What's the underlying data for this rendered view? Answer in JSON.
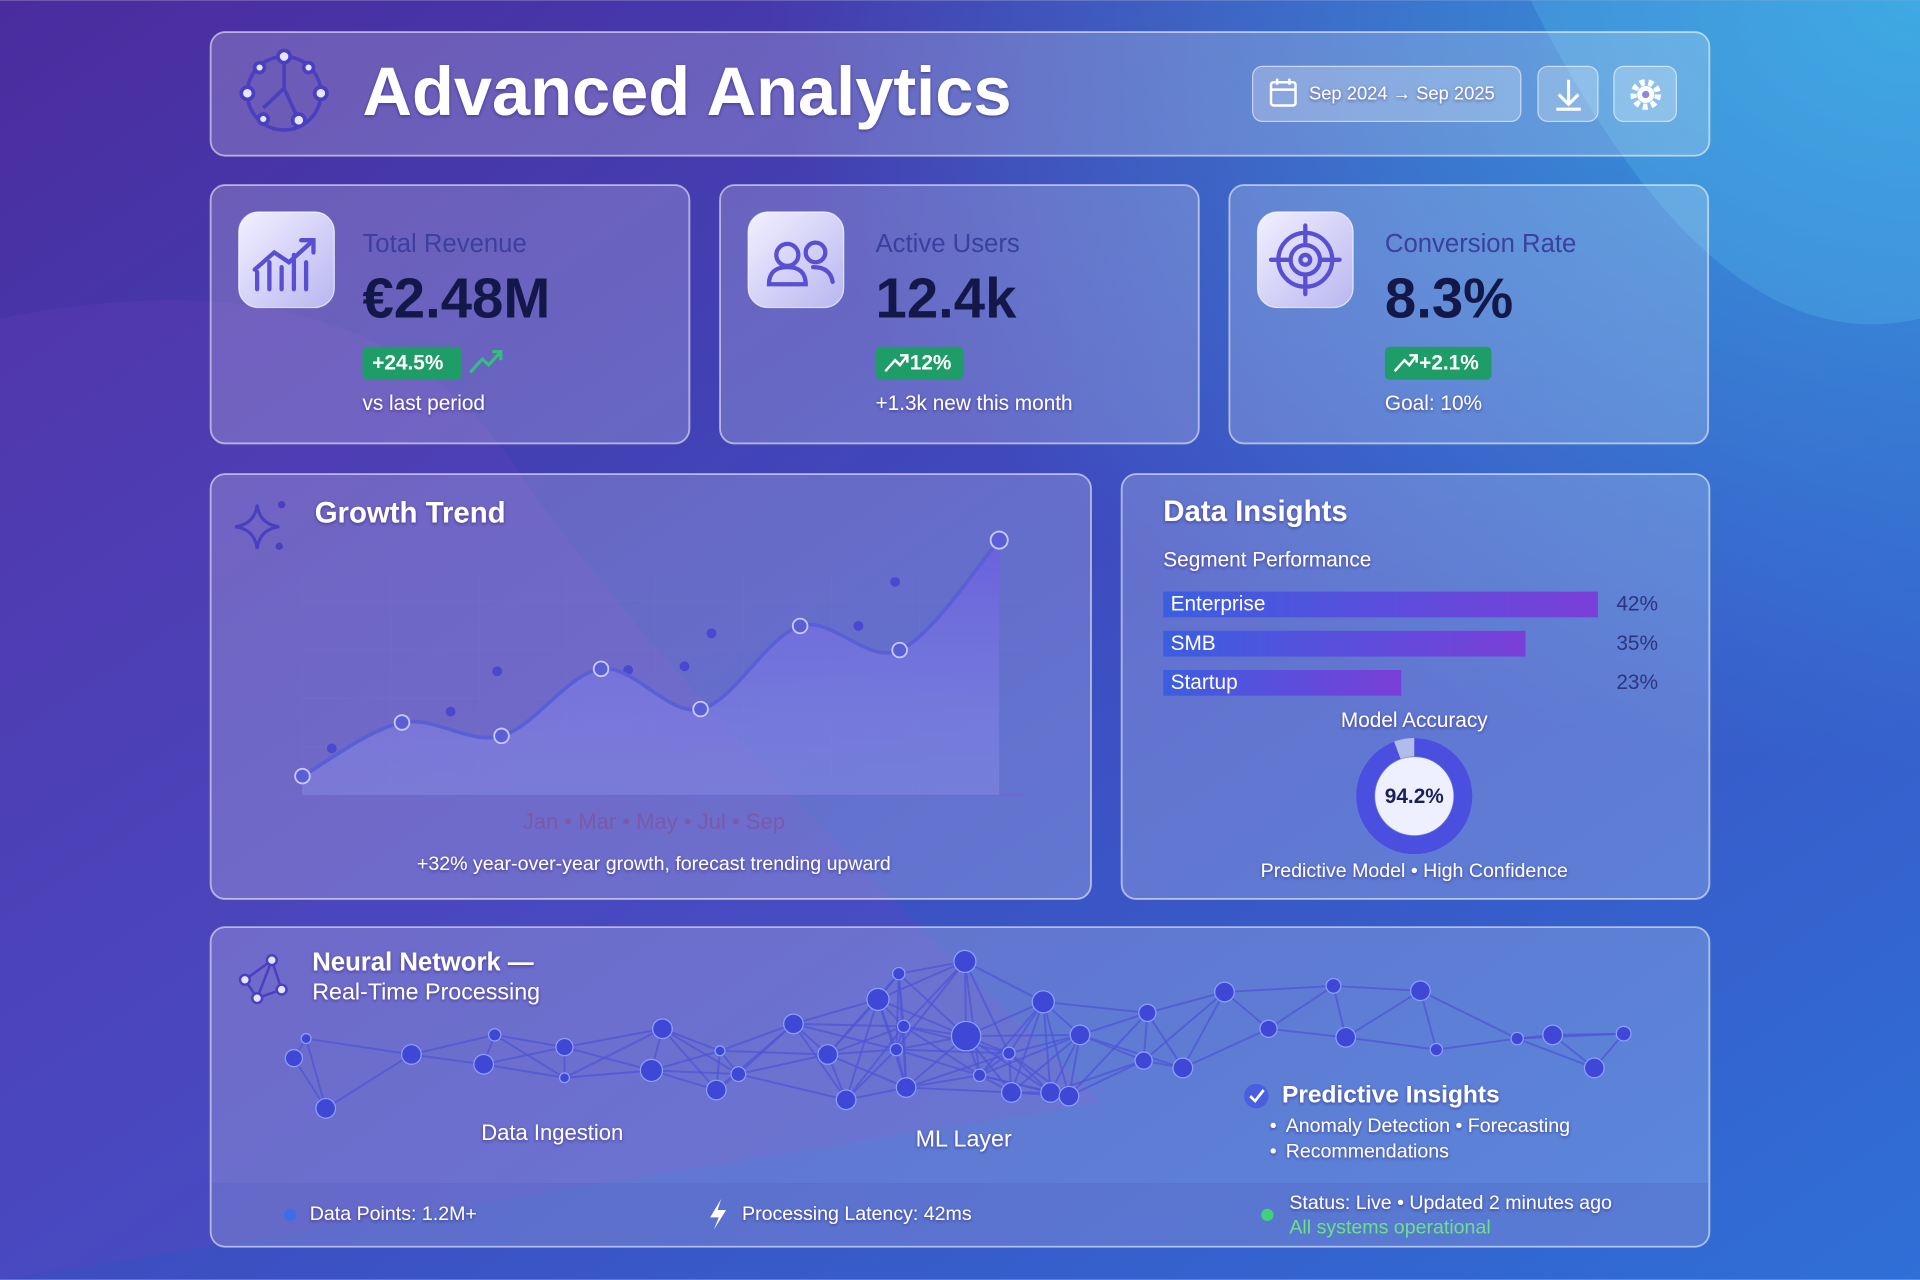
{
  "header": {
    "title": "Advanced Analytics",
    "date_range": "Sep 2024 → Sep 2025"
  },
  "kpis": [
    {
      "label": "Total Revenue",
      "value": "€2.48M",
      "change": "+24.5%",
      "note": "vs last period"
    },
    {
      "label": "Active Users",
      "value": "12.4k",
      "change": "12%",
      "note": "+1.3k new this month"
    },
    {
      "label": "Conversion Rate",
      "value": "8.3%",
      "change": "+2.1%",
      "note": "Goal: 10%"
    }
  ],
  "growth_trend": {
    "type": "area",
    "title": "Growth Trend",
    "x_label": "Jan • Mar • May • Jul • Sep",
    "values": [
      7,
      27,
      22,
      47,
      32,
      63,
      54,
      95
    ],
    "ylim": [
      0,
      100
    ],
    "color": "#5b5fd6",
    "caption": "+32% year-over-year growth, forecast trending upward"
  },
  "insights": {
    "title": "Data Insights",
    "subtitle": "Segment Performance",
    "segments": {
      "type": "bar",
      "categories": [
        "Enterprise",
        "SMB",
        "Startup"
      ],
      "values": [
        42,
        35,
        23
      ],
      "value_labels": [
        "42%",
        "35%",
        "23%"
      ]
    },
    "accuracy": {
      "title": "Model Accuracy",
      "value": 94.2,
      "value_label": "94.2%",
      "caption": "Predictive Model • High Confidence"
    }
  },
  "network": {
    "title": "Neural Network —",
    "subtitle": "Real-Time Processing",
    "stage_labels": [
      "Data Ingestion",
      "ML Layer"
    ],
    "insights_title": "Predictive Insights",
    "insights_items": [
      "Anomaly Detection • Forecasting",
      "Recommendations"
    ]
  },
  "footer": {
    "data_points": "Data Points: 1.2M+",
    "latency": "Processing Latency: 42ms",
    "status": "Status: Live • Updated 2 minutes ago",
    "health": "All systems operational"
  }
}
